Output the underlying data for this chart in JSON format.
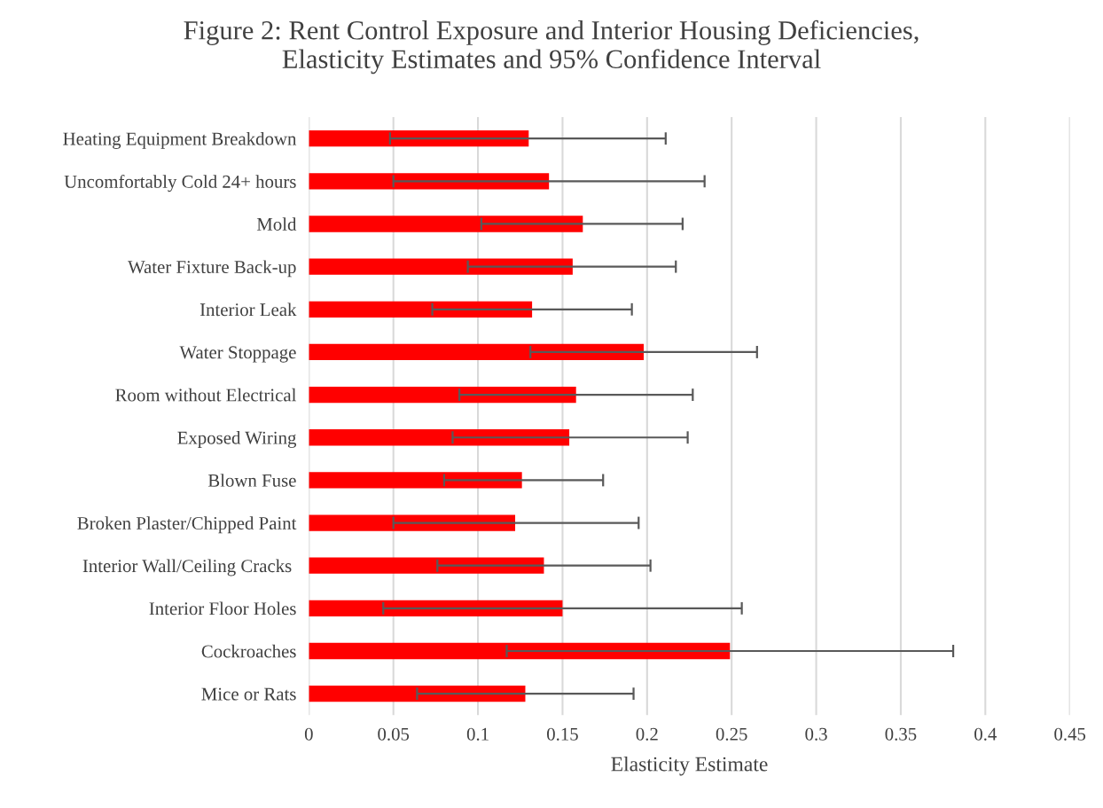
{
  "chart_data": {
    "type": "bar",
    "orientation": "horizontal",
    "title": "Figure 2: Rent Control Exposure and Interior Housing Deficiencies,\nElasticity Estimates and 95% Confidence Interval",
    "xlabel": "Elasticity Estimate",
    "categories": [
      "Heating Equipment Breakdown",
      "Uncomfortably Cold 24+ hours",
      "Mold",
      "Water Fixture Back-up",
      "Interior Leak",
      "Water Stoppage",
      "Room without Electrical",
      "Exposed Wiring",
      "Blown Fuse",
      "Broken Plaster/Chipped Paint",
      "Interior Wall/Ceiling Cracks ",
      "Interior Floor Holes",
      "Cockroaches",
      "Mice or Rats"
    ],
    "values": [
      0.13,
      0.142,
      0.162,
      0.156,
      0.132,
      0.198,
      0.158,
      0.154,
      0.126,
      0.122,
      0.139,
      0.15,
      0.249,
      0.128
    ],
    "errors": [
      [
        0.048,
        0.211
      ],
      [
        0.05,
        0.234
      ],
      [
        0.102,
        0.221
      ],
      [
        0.094,
        0.217
      ],
      [
        0.073,
        0.191
      ],
      [
        0.131,
        0.265
      ],
      [
        0.089,
        0.227
      ],
      [
        0.085,
        0.224
      ],
      [
        0.08,
        0.174
      ],
      [
        0.05,
        0.195
      ],
      [
        0.076,
        0.202
      ],
      [
        0.044,
        0.256
      ],
      [
        0.117,
        0.381
      ],
      [
        0.064,
        0.192
      ]
    ],
    "color": "#ff0000",
    "xlim": [
      0,
      0.45
    ],
    "xticks": [
      0,
      0.05,
      0.1,
      0.15,
      0.2,
      0.25,
      0.3,
      0.35,
      0.4,
      0.45
    ],
    "grid": "x"
  }
}
